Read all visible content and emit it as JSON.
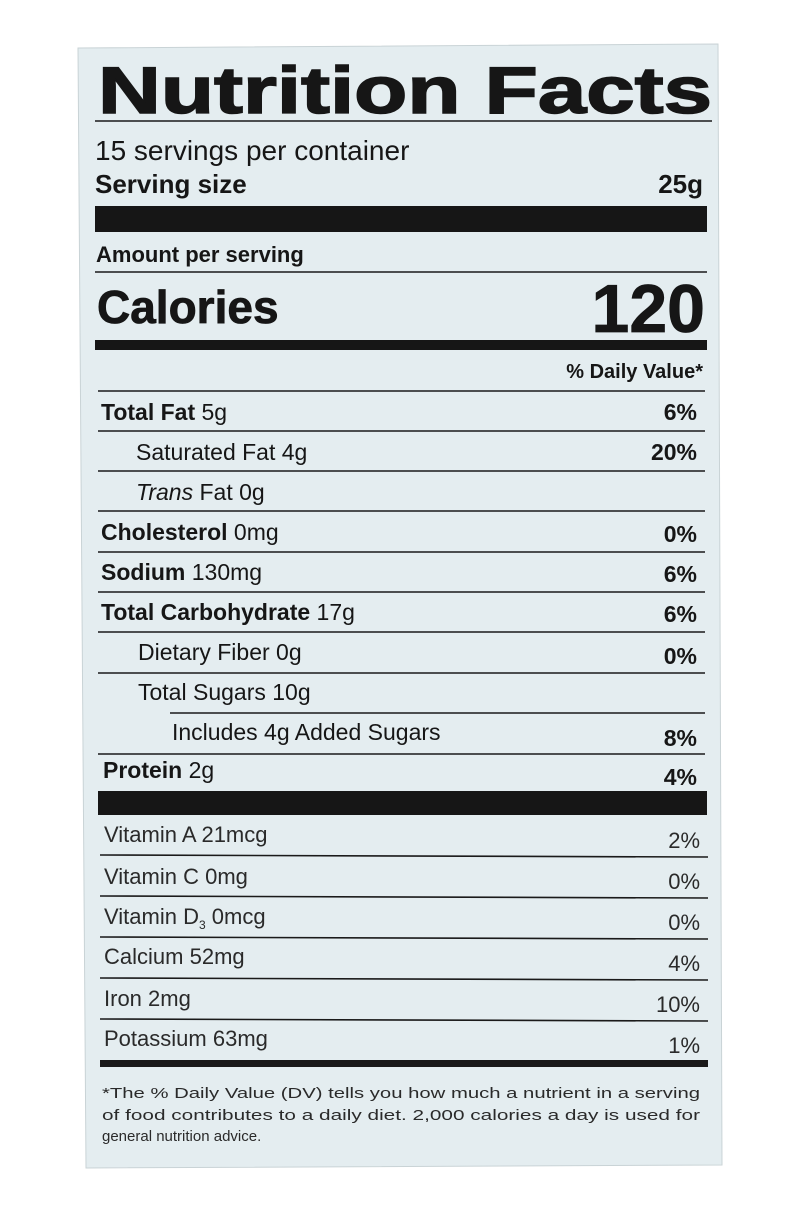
{
  "label": {
    "title": "Nutrition Facts",
    "servings": "15 servings per container",
    "serving_size": {
      "label": "Serving size",
      "value": "25g"
    },
    "amount_per_serving": "Amount per serving",
    "calories": {
      "label": "Calories",
      "value": "120"
    },
    "dv_header": "% Daily Value*",
    "nutrients": [
      {
        "name": "Total Fat",
        "amount": "5g",
        "dv": "6%"
      },
      {
        "name": "Saturated Fat",
        "amount": "4g",
        "dv": "20%"
      },
      {
        "name_italic": "Trans",
        "name": "Fat",
        "amount": "0g"
      },
      {
        "name": "Cholesterol",
        "amount": "0mg",
        "dv": "0%"
      },
      {
        "name": "Sodium",
        "amount": "130mg",
        "dv": "6%"
      },
      {
        "name": "Total Carbohydrate",
        "amount": "17g",
        "dv": "6%"
      },
      {
        "name": "Dietary Fiber",
        "amount": "0g",
        "dv": "0%"
      },
      {
        "name": "Total Sugars",
        "amount": "10g"
      },
      {
        "name": "Includes 4g Added Sugars",
        "dv": "8%"
      },
      {
        "name": "Protein",
        "amount": "2g",
        "dv": "4%"
      }
    ],
    "vitamins": [
      {
        "name": "Vitamin A",
        "amount": "21mcg",
        "dv": "2%"
      },
      {
        "name": "Vitamin C",
        "amount": "0mg",
        "dv": "0%"
      },
      {
        "name": "Vitamin D",
        "subscript": "3",
        "amount": "0mcg",
        "dv": "0%"
      },
      {
        "name": "Calcium",
        "amount": "52mg",
        "dv": "4%"
      },
      {
        "name": "Iron",
        "amount": "2mg",
        "dv": "10%"
      },
      {
        "name": "Potassium",
        "amount": "63mg",
        "dv": "1%"
      }
    ],
    "footnote": [
      "*The % Daily Value (DV) tells you how much a nutrient in a serving",
      "of food contributes to a daily diet. 2,000 calories a day is used for",
      "general nutrition advice."
    ]
  }
}
